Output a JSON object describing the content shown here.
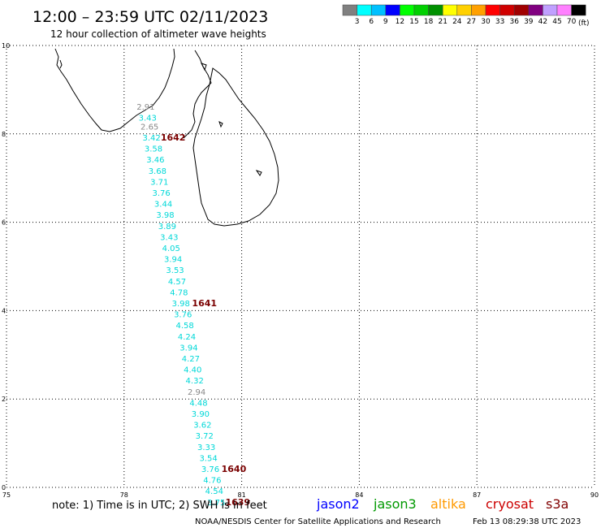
{
  "header": {
    "title": "12:00 – 23:59 UTC 02/11/2023",
    "subtitle": "12 hour collection of altimeter wave heights"
  },
  "color_scale": {
    "unit_label": "(ft)",
    "ticks": [
      "3",
      "6",
      "9",
      "12",
      "15",
      "18",
      "21",
      "24",
      "27",
      "30",
      "33",
      "36",
      "39",
      "42",
      "45",
      "70"
    ],
    "colors": [
      "#808080",
      "#00ffff",
      "#00c0ff",
      "#0000ff",
      "#00ff00",
      "#00d000",
      "#009000",
      "#ffff00",
      "#ffd000",
      "#ffa000",
      "#ff0000",
      "#d00000",
      "#a00000",
      "#800080",
      "#c0a0ff",
      "#ff80ff",
      "#000000"
    ]
  },
  "axes": {
    "x_ticks": [
      75,
      78,
      81,
      84,
      87,
      90
    ],
    "y_ticks": [
      0,
      2,
      4,
      6,
      8,
      10
    ],
    "x_range": [
      75,
      90
    ],
    "y_range": [
      0,
      10
    ]
  },
  "colors": {
    "cyan": "#00d8d8",
    "gray": "#888888",
    "maroon": "#7a0000",
    "coast": "#000000",
    "grid": "#000000"
  },
  "track": {
    "readings": [
      {
        "lat": 8.55,
        "lon": 78.55,
        "value": "2.91",
        "color": "gray"
      },
      {
        "lat": 8.3,
        "lon": 78.6,
        "value": "3.43",
        "color": "cyan"
      },
      {
        "lat": 8.1,
        "lon": 78.65,
        "value": "2.65",
        "color": "gray"
      },
      {
        "lat": 7.85,
        "lon": 78.7,
        "value": "3.42",
        "color": "cyan"
      },
      {
        "lat": 7.6,
        "lon": 78.75,
        "value": "3.58",
        "color": "cyan"
      },
      {
        "lat": 7.35,
        "lon": 78.8,
        "value": "3.46",
        "color": "cyan"
      },
      {
        "lat": 7.1,
        "lon": 78.85,
        "value": "3.68",
        "color": "cyan"
      },
      {
        "lat": 6.85,
        "lon": 78.9,
        "value": "3.71",
        "color": "cyan"
      },
      {
        "lat": 6.6,
        "lon": 78.95,
        "value": "3.76",
        "color": "cyan"
      },
      {
        "lat": 6.35,
        "lon": 79.0,
        "value": "3.44",
        "color": "cyan"
      },
      {
        "lat": 6.1,
        "lon": 79.05,
        "value": "3.98",
        "color": "cyan"
      },
      {
        "lat": 5.85,
        "lon": 79.1,
        "value": "3.89",
        "color": "cyan"
      },
      {
        "lat": 5.6,
        "lon": 79.15,
        "value": "3.43",
        "color": "cyan"
      },
      {
        "lat": 5.35,
        "lon": 79.2,
        "value": "4.05",
        "color": "cyan"
      },
      {
        "lat": 5.1,
        "lon": 79.25,
        "value": "3.94",
        "color": "cyan"
      },
      {
        "lat": 4.85,
        "lon": 79.3,
        "value": "3.53",
        "color": "cyan"
      },
      {
        "lat": 4.6,
        "lon": 79.35,
        "value": "4.57",
        "color": "cyan"
      },
      {
        "lat": 4.35,
        "lon": 79.4,
        "value": "4.78",
        "color": "cyan"
      },
      {
        "lat": 4.1,
        "lon": 79.45,
        "value": "3.98",
        "color": "cyan"
      },
      {
        "lat": 3.85,
        "lon": 79.5,
        "value": "3.76",
        "color": "cyan"
      },
      {
        "lat": 3.6,
        "lon": 79.55,
        "value": "4.58",
        "color": "cyan"
      },
      {
        "lat": 3.35,
        "lon": 79.6,
        "value": "4.24",
        "color": "cyan"
      },
      {
        "lat": 3.1,
        "lon": 79.65,
        "value": "3.94",
        "color": "cyan"
      },
      {
        "lat": 2.85,
        "lon": 79.7,
        "value": "4.27",
        "color": "cyan"
      },
      {
        "lat": 2.6,
        "lon": 79.75,
        "value": "4.40",
        "color": "cyan"
      },
      {
        "lat": 2.35,
        "lon": 79.8,
        "value": "4.32",
        "color": "cyan"
      },
      {
        "lat": 2.1,
        "lon": 79.85,
        "value": "2.94",
        "color": "gray"
      },
      {
        "lat": 1.85,
        "lon": 79.9,
        "value": "4.48",
        "color": "cyan"
      },
      {
        "lat": 1.6,
        "lon": 79.95,
        "value": "3.90",
        "color": "cyan"
      },
      {
        "lat": 1.35,
        "lon": 80.0,
        "value": "3.62",
        "color": "cyan"
      },
      {
        "lat": 1.1,
        "lon": 80.05,
        "value": "3.72",
        "color": "cyan"
      },
      {
        "lat": 0.85,
        "lon": 80.1,
        "value": "3.33",
        "color": "cyan"
      },
      {
        "lat": 0.6,
        "lon": 80.15,
        "value": "3.54",
        "color": "cyan"
      },
      {
        "lat": 0.35,
        "lon": 80.2,
        "value": "3.76",
        "color": "cyan"
      },
      {
        "lat": 0.1,
        "lon": 80.25,
        "value": "4.76",
        "color": "cyan"
      },
      {
        "lat": -0.15,
        "lon": 80.3,
        "value": "4.54",
        "color": "cyan"
      },
      {
        "lat": -0.4,
        "lon": 80.35,
        "value": "3.75",
        "color": "cyan"
      }
    ],
    "time_markers": [
      {
        "lat": 7.85,
        "lon": 79.25,
        "value": "1642"
      },
      {
        "lat": 4.1,
        "lon": 80.05,
        "value": "1641"
      },
      {
        "lat": 0.35,
        "lon": 80.8,
        "value": "1640"
      },
      {
        "lat": -0.4,
        "lon": 80.9,
        "value": "1639"
      }
    ]
  },
  "footer": {
    "note": "note: 1) Time is in UTC; 2) SWH is in feet",
    "legend": [
      {
        "label": "jason2",
        "color": "#0000ff"
      },
      {
        "label": "jason3",
        "color": "#009900"
      },
      {
        "label": "altika",
        "color": "#ff9900"
      },
      {
        "label": "cryosat",
        "color": "#cc0000"
      },
      {
        "label": "s3a",
        "color": "#800000"
      }
    ],
    "credit": "NOAA/NESDIS Center for Satellite Applications and Research",
    "timestamp": "Feb 13 08:29:38 UTC 2023"
  }
}
